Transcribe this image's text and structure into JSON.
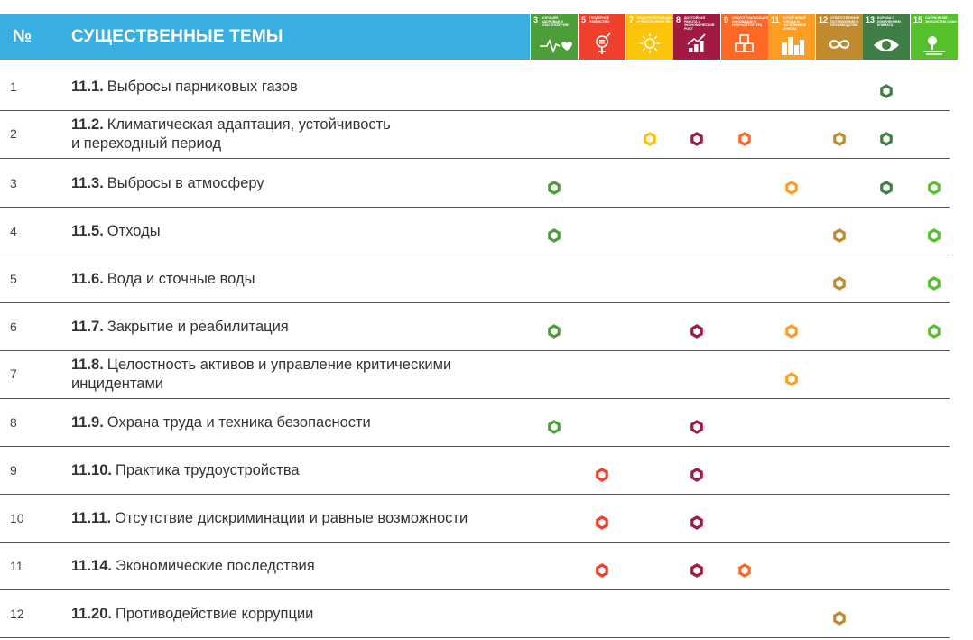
{
  "header": {
    "num_label": "№",
    "title": "СУЩЕСТВЕННЫЕ ТЕМЫ"
  },
  "sdg_columns": [
    {
      "num": "3",
      "caption": "Хорошее здоровье и благополучие",
      "color": "#4c9f38",
      "icon": "heartbeat-icon"
    },
    {
      "num": "5",
      "caption": "Гендерное равенство",
      "color": "#ef402b",
      "icon": "gender-icon"
    },
    {
      "num": "7",
      "caption": "Недорогостоящая и чистая энергия",
      "color": "#fcc30b",
      "icon": "sun-icon"
    },
    {
      "num": "8",
      "caption": "Достойная работа и экономический рост",
      "color": "#a21942",
      "icon": "growth-chart-icon"
    },
    {
      "num": "9",
      "caption": "Индустриализация, инновации и инфраструктура",
      "color": "#fd6925",
      "icon": "cubes-icon"
    },
    {
      "num": "11",
      "caption": "Устойчивые города и населенные пункты",
      "color": "#fd9d24",
      "icon": "city-icon"
    },
    {
      "num": "12",
      "caption": "Ответственное потребление и производство",
      "color": "#bf8b2e",
      "icon": "infinity-icon"
    },
    {
      "num": "13",
      "caption": "Борьба с изменением климата",
      "color": "#3f7e44",
      "icon": "eye-globe-icon"
    },
    {
      "num": "15",
      "caption": "Сохранение экосистем суши",
      "color": "#56c02b",
      "icon": "tree-icon"
    }
  ],
  "rows": [
    {
      "num": "1",
      "code": "11.1.",
      "lines": [
        "Выбросы парниковых газов"
      ],
      "marks": [
        7
      ]
    },
    {
      "num": "2",
      "code": "11.2.",
      "lines": [
        "Климатическая адаптация, устойчивость",
        "и переходный период"
      ],
      "marks": [
        2,
        3,
        4,
        6,
        7
      ]
    },
    {
      "num": "3",
      "code": "11.3.",
      "lines": [
        "Выбросы в атмосферу"
      ],
      "marks": [
        0,
        5,
        7,
        8
      ]
    },
    {
      "num": "4",
      "code": "11.5.",
      "lines": [
        "Отходы"
      ],
      "marks": [
        0,
        6,
        8
      ]
    },
    {
      "num": "5",
      "code": "11.6.",
      "lines": [
        "Вода и сточные воды"
      ],
      "marks": [
        6,
        8
      ]
    },
    {
      "num": "6",
      "code": "11.7.",
      "lines": [
        "Закрытие и реабилитация"
      ],
      "marks": [
        0,
        3,
        5,
        8
      ]
    },
    {
      "num": "7",
      "code": "11.8.",
      "lines": [
        "Целостность активов и управление критическими",
        "инцидентами"
      ],
      "marks": [
        5
      ]
    },
    {
      "num": "8",
      "code": "11.9.",
      "lines": [
        "Охрана труда и техника безопасности"
      ],
      "marks": [
        0,
        3
      ]
    },
    {
      "num": "9",
      "code": "11.10.",
      "lines": [
        "Практика трудоустройства"
      ],
      "marks": [
        1,
        3
      ]
    },
    {
      "num": "10",
      "code": "11.11.",
      "lines": [
        "Отсутствие дискриминации и равные возможности"
      ],
      "marks": [
        1,
        3
      ]
    },
    {
      "num": "11",
      "code": "11.14.",
      "lines": [
        "Экономические последствия"
      ],
      "marks": [
        1,
        3,
        4
      ]
    },
    {
      "num": "12",
      "code": "11.20.",
      "lines": [
        "Противодействие коррупции"
      ],
      "marks": [
        6
      ]
    }
  ]
}
